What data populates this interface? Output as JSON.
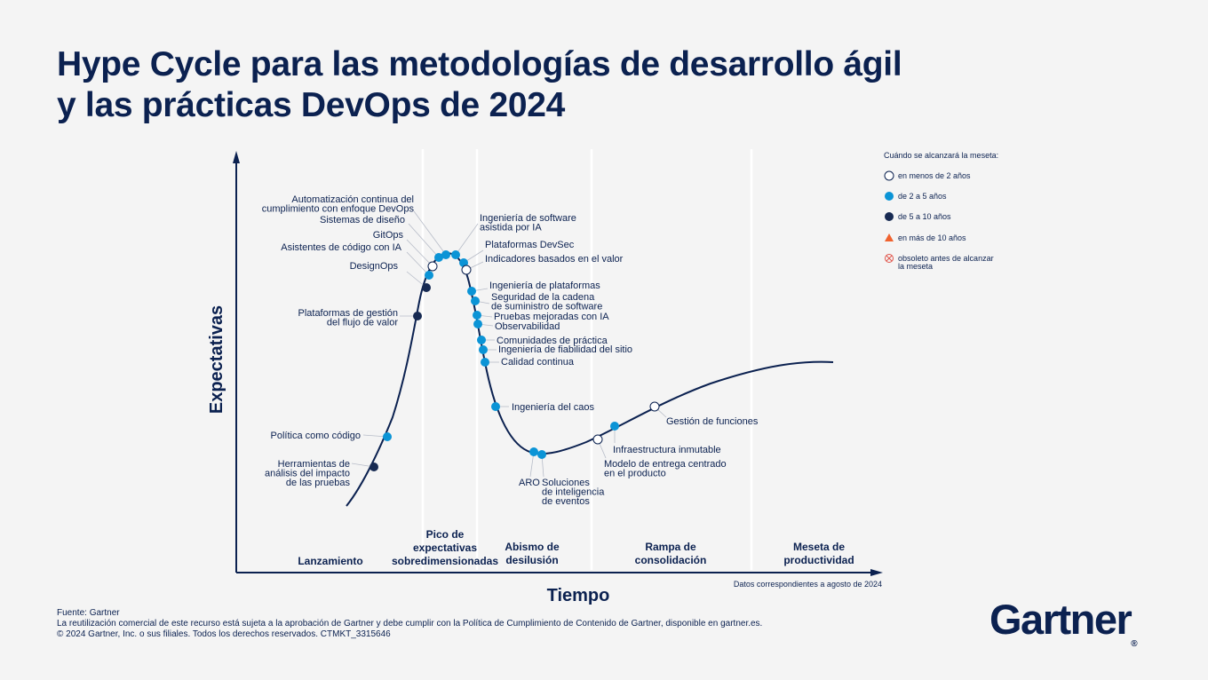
{
  "title": {
    "line1": "Hype Cycle para las metodologías de desarrollo ágil",
    "line2": "y las prácticas DevOps de 2024"
  },
  "axes": {
    "y_label": "Expectativas",
    "x_label": "Tiempo",
    "date_note": "Datos correspondientes a agosto de 2024"
  },
  "phases": [
    {
      "lines": [
        "Lanzamiento"
      ]
    },
    {
      "lines": [
        "Pico de",
        "expectativas",
        "sobredimensionadas"
      ]
    },
    {
      "lines": [
        "Abismo de",
        "desilusión"
      ]
    },
    {
      "lines": [
        "Rampa de",
        "consolidación"
      ]
    },
    {
      "lines": [
        "Meseta de",
        "productividad"
      ]
    }
  ],
  "legend": {
    "title": "Cuándo se alcanzará la meseta:",
    "items": [
      {
        "key": "lt2",
        "label": [
          "en menos de 2 años"
        ],
        "icon": "white-circle-icon"
      },
      {
        "key": "2to5",
        "label": [
          "de 2 a 5 años"
        ],
        "icon": "light-blue-circle-icon"
      },
      {
        "key": "5to10",
        "label": [
          "de 5 a 10 años"
        ],
        "icon": "dark-blue-circle-icon"
      },
      {
        "key": "gt10",
        "label": [
          "en más de 10 años"
        ],
        "icon": "orange-triangle-icon"
      },
      {
        "key": "obsolete",
        "label": [
          "obsoleto antes de alcanzar",
          "la meseta"
        ],
        "icon": "crossed-circle-icon"
      }
    ]
  },
  "colors": {
    "navy": "#0b2150",
    "light_blue": "#0b94d6",
    "dark_blue": "#172a52",
    "white": "#ffffff",
    "orange": "#f0622e",
    "obsolete": "#e0544a"
  },
  "technologies": [
    {
      "name": "Herramientas de análisis del impacto de las pruebas",
      "lines": [
        "Herramientas de",
        "análisis del impacto",
        "de las pruebas"
      ],
      "category": "5to10"
    },
    {
      "name": "Política como código",
      "lines": [
        "Política como código"
      ],
      "category": "2to5"
    },
    {
      "name": "Plataformas de gestión del flujo de valor",
      "lines": [
        "Plataformas de gestión",
        "del flujo de valor"
      ],
      "category": "5to10"
    },
    {
      "name": "DesignOps",
      "lines": [
        "DesignOps"
      ],
      "category": "5to10"
    },
    {
      "name": "Asistentes de código con IA",
      "lines": [
        "Asistentes de código con IA"
      ],
      "category": "2to5"
    },
    {
      "name": "GitOps",
      "lines": [
        "GitOps"
      ],
      "category": "lt2"
    },
    {
      "name": "Sistemas de diseño",
      "lines": [
        "Sistemas de diseño"
      ],
      "category": "2to5"
    },
    {
      "name": "Automatización continua del cumplimiento con enfoque DevOps",
      "lines": [
        "Automatización continua del",
        "cumplimiento con enfoque DevOps"
      ],
      "category": "2to5"
    },
    {
      "name": "Ingeniería de software asistida por IA",
      "lines": [
        "Ingeniería de software",
        "asistida por IA"
      ],
      "category": "2to5"
    },
    {
      "name": "Plataformas DevSec",
      "lines": [
        "Plataformas DevSec"
      ],
      "category": "2to5"
    },
    {
      "name": "Indicadores basados en el valor",
      "lines": [
        "Indicadores basados en el valor"
      ],
      "category": "lt2"
    },
    {
      "name": "Ingeniería de plataformas",
      "lines": [
        "Ingeniería de plataformas"
      ],
      "category": "2to5"
    },
    {
      "name": "Seguridad de la cadena de suministro de software",
      "lines": [
        "Seguridad de la cadena",
        "de suministro de software"
      ],
      "category": "2to5"
    },
    {
      "name": "Pruebas mejoradas con IA",
      "lines": [
        "Pruebas mejoradas con IA"
      ],
      "category": "2to5"
    },
    {
      "name": "Observabilidad",
      "lines": [
        "Observabilidad"
      ],
      "category": "2to5"
    },
    {
      "name": "Comunidades de práctica",
      "lines": [
        "Comunidades de práctica"
      ],
      "category": "2to5"
    },
    {
      "name": "Ingeniería de fiabilidad del sitio",
      "lines": [
        "Ingeniería de fiabilidad del sitio"
      ],
      "category": "2to5"
    },
    {
      "name": "Calidad continua",
      "lines": [
        "Calidad continua"
      ],
      "category": "2to5"
    },
    {
      "name": "Ingeniería del caos",
      "lines": [
        "Ingeniería del caos"
      ],
      "category": "2to5"
    },
    {
      "name": "ARO",
      "lines": [
        "ARO"
      ],
      "category": "2to5"
    },
    {
      "name": "Soluciones de inteligencia de eventos",
      "lines": [
        "Soluciones",
        "de inteligencia",
        "de eventos"
      ],
      "category": "2to5"
    },
    {
      "name": "Modelo de entrega centrado en el producto",
      "lines": [
        "Modelo de entrega centrado",
        "en el producto"
      ],
      "category": "lt2"
    },
    {
      "name": "Infraestructura inmutable",
      "lines": [
        "Infraestructura inmutable"
      ],
      "category": "2to5"
    },
    {
      "name": "Gestión de funciones",
      "lines": [
        "Gestión de funciones"
      ],
      "category": "lt2"
    }
  ],
  "footer": {
    "source": "Fuente: Gartner",
    "reuse": "La reutilización comercial de este recurso está sujeta a la aprobación de Gartner y debe cumplir con la Política de Cumplimiento de Contenido de Gartner, disponible en gartner.es.",
    "copyright": "© 2024 Gartner, Inc. o sus filiales. Todos los derechos reservados. CTMKT_3315646"
  },
  "logo": {
    "text": "Gartner",
    "mark": "®"
  }
}
